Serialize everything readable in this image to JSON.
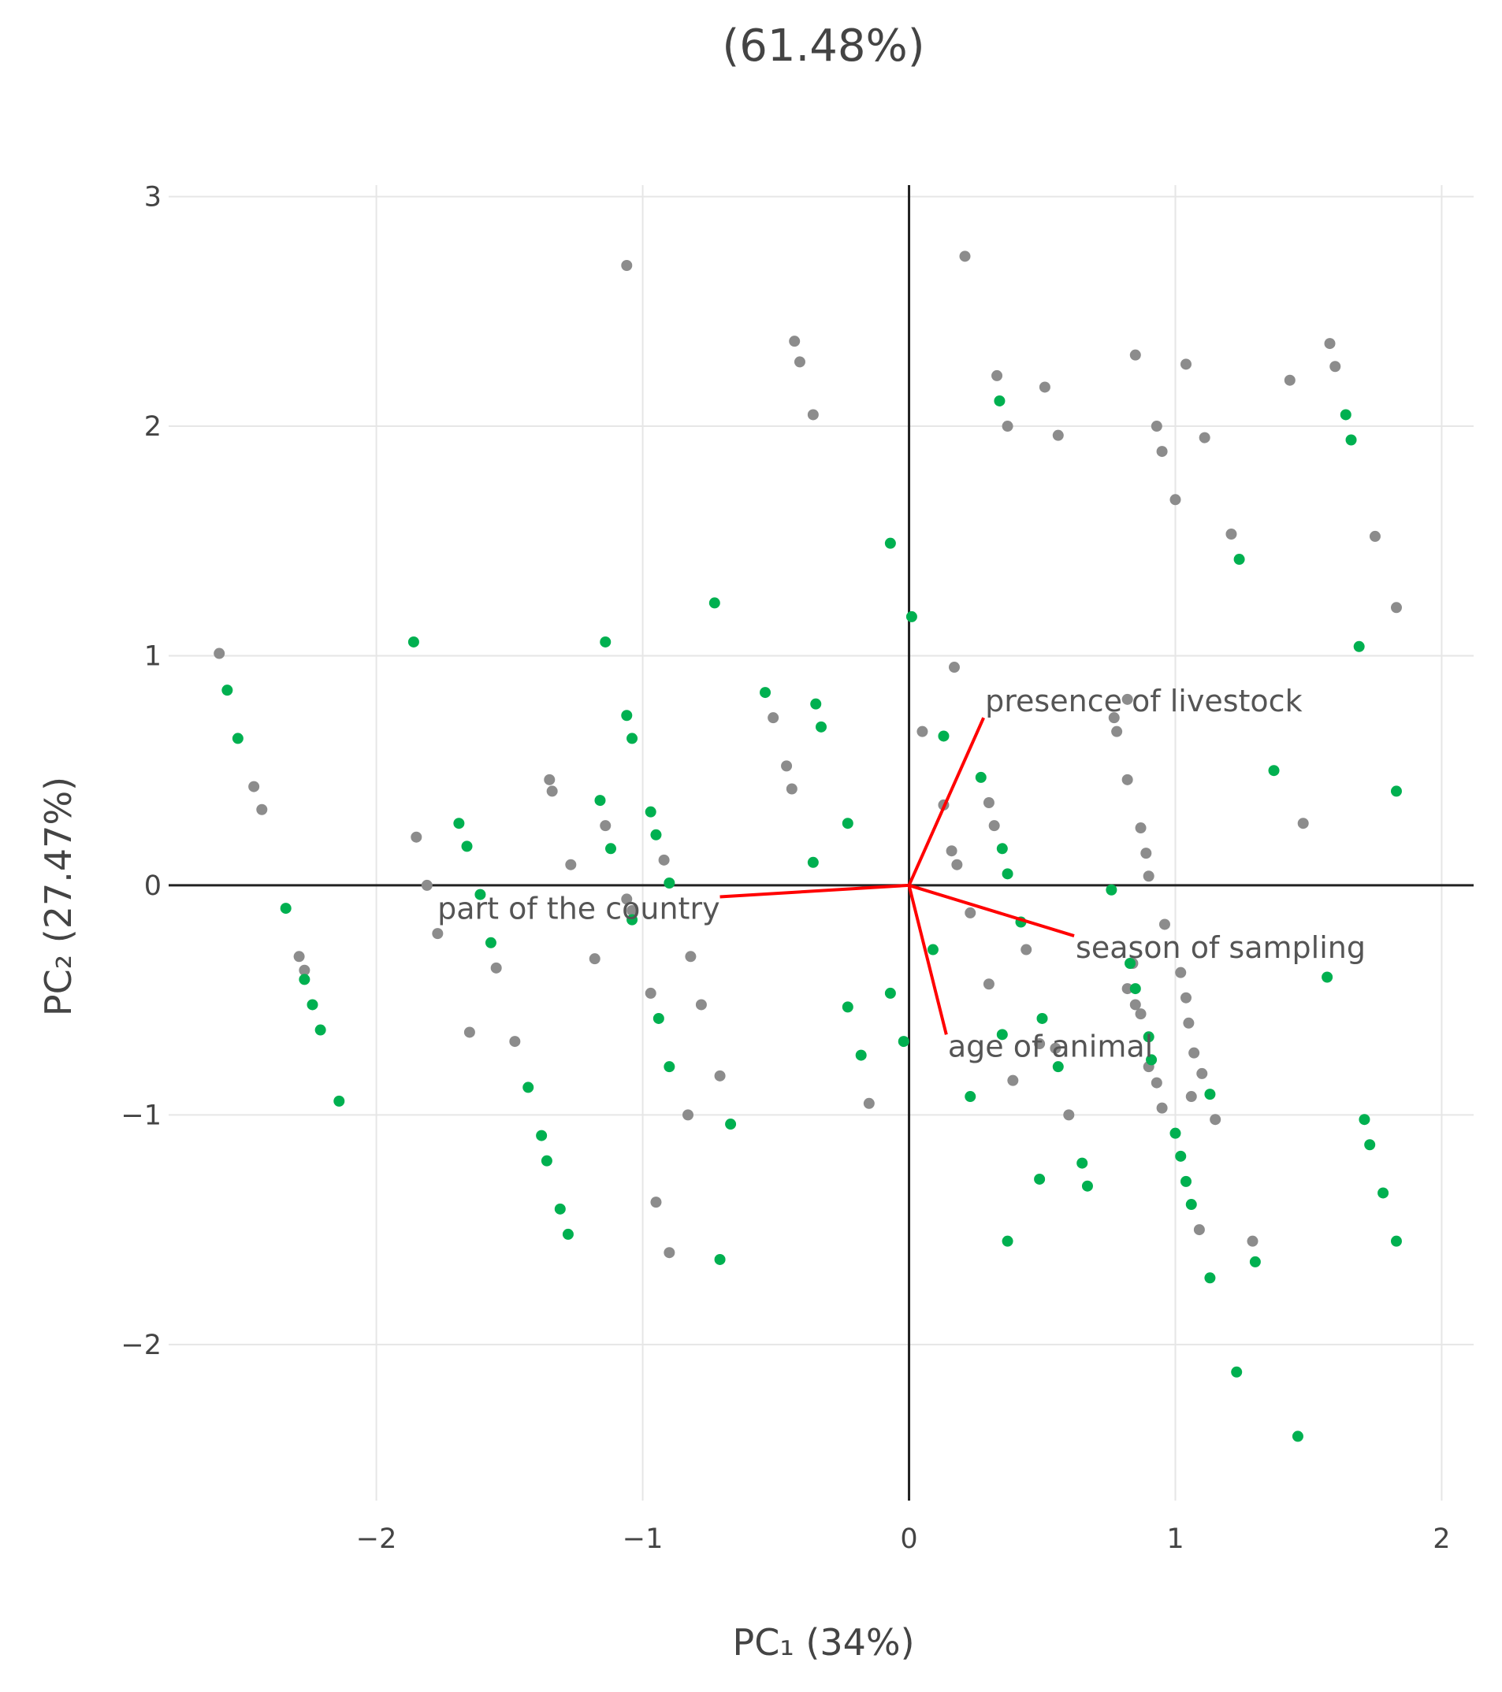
{
  "chart_data": {
    "type": "scatter",
    "title": "(61.48%)",
    "xlabel": "PC₁ (34%)",
    "ylabel": "PC₂ (27.47%)",
    "xlim": [
      -2.78,
      2.12
    ],
    "ylim": [
      -2.68,
      3.05
    ],
    "x_ticks": [
      -2,
      -1,
      0,
      1,
      2
    ],
    "y_ticks": [
      -2,
      -1,
      0,
      1,
      2,
      3
    ],
    "x_tick_labels": [
      "−2",
      "−1",
      "0",
      "1",
      "2"
    ],
    "y_tick_labels": [
      "−2",
      "−1",
      "0",
      "1",
      "2",
      "3"
    ],
    "grid": true,
    "legend": "none",
    "colors": {
      "gray": "#8c8c8c",
      "green": "#00b050",
      "vectors": "#ff0000",
      "zero_lines": "#222222",
      "grid": "#e6e6e6"
    },
    "series": [
      {
        "color": "gray",
        "points": [
          [
            -2.59,
            1.01
          ],
          [
            -2.46,
            0.43
          ],
          [
            -2.43,
            0.33
          ],
          [
            -2.29,
            -0.31
          ],
          [
            -2.27,
            -0.37
          ],
          [
            -1.85,
            0.21
          ],
          [
            -1.81,
            0.0
          ],
          [
            -1.77,
            -0.21
          ],
          [
            -1.65,
            -0.64
          ],
          [
            -1.55,
            -0.36
          ],
          [
            -1.48,
            -0.68
          ],
          [
            -1.35,
            0.46
          ],
          [
            -1.34,
            0.41
          ],
          [
            -1.27,
            0.09
          ],
          [
            -1.18,
            -0.32
          ],
          [
            -1.14,
            0.26
          ],
          [
            -1.06,
            2.7
          ],
          [
            -1.06,
            -0.06
          ],
          [
            -1.04,
            -0.11
          ],
          [
            -0.97,
            -0.47
          ],
          [
            -0.95,
            -1.38
          ],
          [
            -0.92,
            0.11
          ],
          [
            -0.9,
            -1.6
          ],
          [
            -0.83,
            -1.0
          ],
          [
            -0.82,
            -0.31
          ],
          [
            -0.78,
            -0.52
          ],
          [
            -0.71,
            -0.83
          ],
          [
            -0.51,
            0.73
          ],
          [
            -0.46,
            0.52
          ],
          [
            -0.44,
            0.42
          ],
          [
            -0.43,
            2.37
          ],
          [
            -0.41,
            2.28
          ],
          [
            -0.36,
            2.05
          ],
          [
            -0.15,
            -0.95
          ],
          [
            0.05,
            0.67
          ],
          [
            0.13,
            0.35
          ],
          [
            0.16,
            0.15
          ],
          [
            0.17,
            0.95
          ],
          [
            0.18,
            0.09
          ],
          [
            0.21,
            2.74
          ],
          [
            0.23,
            -0.12
          ],
          [
            0.3,
            0.36
          ],
          [
            0.3,
            -0.43
          ],
          [
            0.32,
            0.26
          ],
          [
            0.33,
            2.22
          ],
          [
            0.37,
            2.0
          ],
          [
            0.39,
            -0.85
          ],
          [
            0.44,
            -0.28
          ],
          [
            0.51,
            2.17
          ],
          [
            0.56,
            1.96
          ],
          [
            0.6,
            -1.0
          ],
          [
            0.77,
            0.73
          ],
          [
            0.78,
            0.67
          ],
          [
            0.82,
            0.81
          ],
          [
            0.82,
            0.46
          ],
          [
            0.85,
            2.31
          ],
          [
            0.87,
            0.25
          ],
          [
            0.89,
            0.14
          ],
          [
            0.9,
            0.04
          ],
          [
            0.93,
            2.0
          ],
          [
            0.95,
            1.89
          ],
          [
            0.96,
            -0.17
          ],
          [
            1.0,
            1.68
          ],
          [
            1.04,
            2.27
          ],
          [
            1.11,
            1.95
          ],
          [
            1.21,
            1.53
          ],
          [
            1.29,
            -1.55
          ],
          [
            1.43,
            2.2
          ],
          [
            1.48,
            0.27
          ],
          [
            1.58,
            2.36
          ],
          [
            1.6,
            2.26
          ],
          [
            1.75,
            1.52
          ],
          [
            1.83,
            1.21
          ],
          [
            0.87,
            -0.56
          ],
          [
            0.9,
            -0.79
          ],
          [
            0.93,
            -0.86
          ],
          [
            0.95,
            -0.97
          ],
          [
            1.02,
            -0.38
          ],
          [
            1.04,
            -0.49
          ],
          [
            1.05,
            -0.6
          ],
          [
            1.07,
            -0.73
          ],
          [
            1.1,
            -0.82
          ],
          [
            1.15,
            -1.02
          ],
          [
            1.09,
            -1.5
          ],
          [
            1.06,
            -0.92
          ],
          [
            0.84,
            -0.34
          ],
          [
            0.82,
            -0.45
          ],
          [
            0.85,
            -0.52
          ],
          [
            0.55,
            -0.71
          ],
          [
            0.49,
            -0.69
          ]
        ]
      },
      {
        "color": "green",
        "points": [
          [
            -2.56,
            0.85
          ],
          [
            -2.52,
            0.64
          ],
          [
            -2.34,
            -0.1
          ],
          [
            -2.27,
            -0.41
          ],
          [
            -2.24,
            -0.52
          ],
          [
            -2.21,
            -0.63
          ],
          [
            -2.14,
            -0.94
          ],
          [
            -1.86,
            1.06
          ],
          [
            -1.69,
            0.27
          ],
          [
            -1.66,
            0.17
          ],
          [
            -1.61,
            -0.04
          ],
          [
            -1.57,
            -0.25
          ],
          [
            -1.43,
            -0.88
          ],
          [
            -1.38,
            -1.09
          ],
          [
            -1.36,
            -1.2
          ],
          [
            -1.31,
            -1.41
          ],
          [
            -1.28,
            -1.52
          ],
          [
            -1.16,
            0.37
          ],
          [
            -1.14,
            1.06
          ],
          [
            -1.12,
            0.16
          ],
          [
            -1.06,
            0.74
          ],
          [
            -1.04,
            0.64
          ],
          [
            -1.04,
            -0.15
          ],
          [
            -0.97,
            0.32
          ],
          [
            -0.95,
            0.22
          ],
          [
            -0.94,
            -0.58
          ],
          [
            -0.9,
            0.01
          ],
          [
            -0.9,
            -0.79
          ],
          [
            -0.73,
            1.23
          ],
          [
            -0.71,
            -1.63
          ],
          [
            -0.67,
            -1.04
          ],
          [
            -0.54,
            0.84
          ],
          [
            -0.36,
            0.1
          ],
          [
            -0.35,
            0.79
          ],
          [
            -0.33,
            0.69
          ],
          [
            -0.23,
            0.27
          ],
          [
            -0.23,
            -0.53
          ],
          [
            -0.18,
            -0.74
          ],
          [
            -0.07,
            1.49
          ],
          [
            -0.07,
            -0.47
          ],
          [
            -0.02,
            -0.68
          ],
          [
            0.01,
            1.17
          ],
          [
            0.09,
            -0.28
          ],
          [
            0.13,
            0.65
          ],
          [
            0.27,
            0.47
          ],
          [
            0.23,
            -0.92
          ],
          [
            0.34,
            2.11
          ],
          [
            0.35,
            0.16
          ],
          [
            0.35,
            -0.65
          ],
          [
            0.37,
            0.05
          ],
          [
            0.37,
            -1.55
          ],
          [
            0.42,
            -0.16
          ],
          [
            0.5,
            -0.58
          ],
          [
            0.56,
            -0.79
          ],
          [
            0.65,
            -1.21
          ],
          [
            0.49,
            -1.28
          ],
          [
            0.67,
            -1.31
          ],
          [
            0.76,
            -0.02
          ],
          [
            0.83,
            -0.34
          ],
          [
            0.85,
            -0.45
          ],
          [
            0.9,
            -0.66
          ],
          [
            0.91,
            -0.76
          ],
          [
            1.0,
            -1.08
          ],
          [
            1.02,
            -1.18
          ],
          [
            1.04,
            -1.29
          ],
          [
            1.06,
            -1.39
          ],
          [
            1.13,
            -0.91
          ],
          [
            1.13,
            -1.71
          ],
          [
            1.23,
            -2.12
          ],
          [
            1.24,
            1.42
          ],
          [
            1.3,
            -1.64
          ],
          [
            1.37,
            0.5
          ],
          [
            1.46,
            -2.4
          ],
          [
            1.57,
            -0.4
          ],
          [
            1.64,
            2.05
          ],
          [
            1.66,
            1.94
          ],
          [
            1.69,
            1.04
          ],
          [
            1.71,
            -1.02
          ],
          [
            1.73,
            -1.13
          ],
          [
            1.78,
            -1.34
          ],
          [
            1.83,
            0.41
          ],
          [
            1.83,
            -1.55
          ]
        ]
      }
    ],
    "loading_vectors": [
      {
        "label": "presence of livestock",
        "x": 0.28,
        "y": 0.73
      },
      {
        "label": "part of the country",
        "x": -0.71,
        "y": -0.05
      },
      {
        "label": "season of sampling",
        "x": 0.62,
        "y": -0.22
      },
      {
        "label": "age of animal",
        "x": 0.14,
        "y": -0.65
      }
    ]
  }
}
